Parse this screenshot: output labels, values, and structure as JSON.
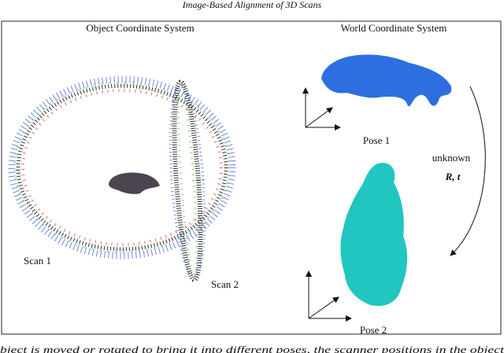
{
  "header": {
    "title": "Image-Based Alignment of 3D Scans"
  },
  "figure": {
    "left_title": "Object Coordinate System",
    "right_title": "World Coordinate System",
    "scan_labels": [
      "Scan 1",
      "Scan 2"
    ],
    "pose_labels": [
      "Pose 1",
      "Pose 2"
    ],
    "transform_note": "unknown",
    "transform_symbol": "R, t"
  },
  "caption": "bject is moved or rotated to bring it into different poses, the scanner positions in the object"
}
